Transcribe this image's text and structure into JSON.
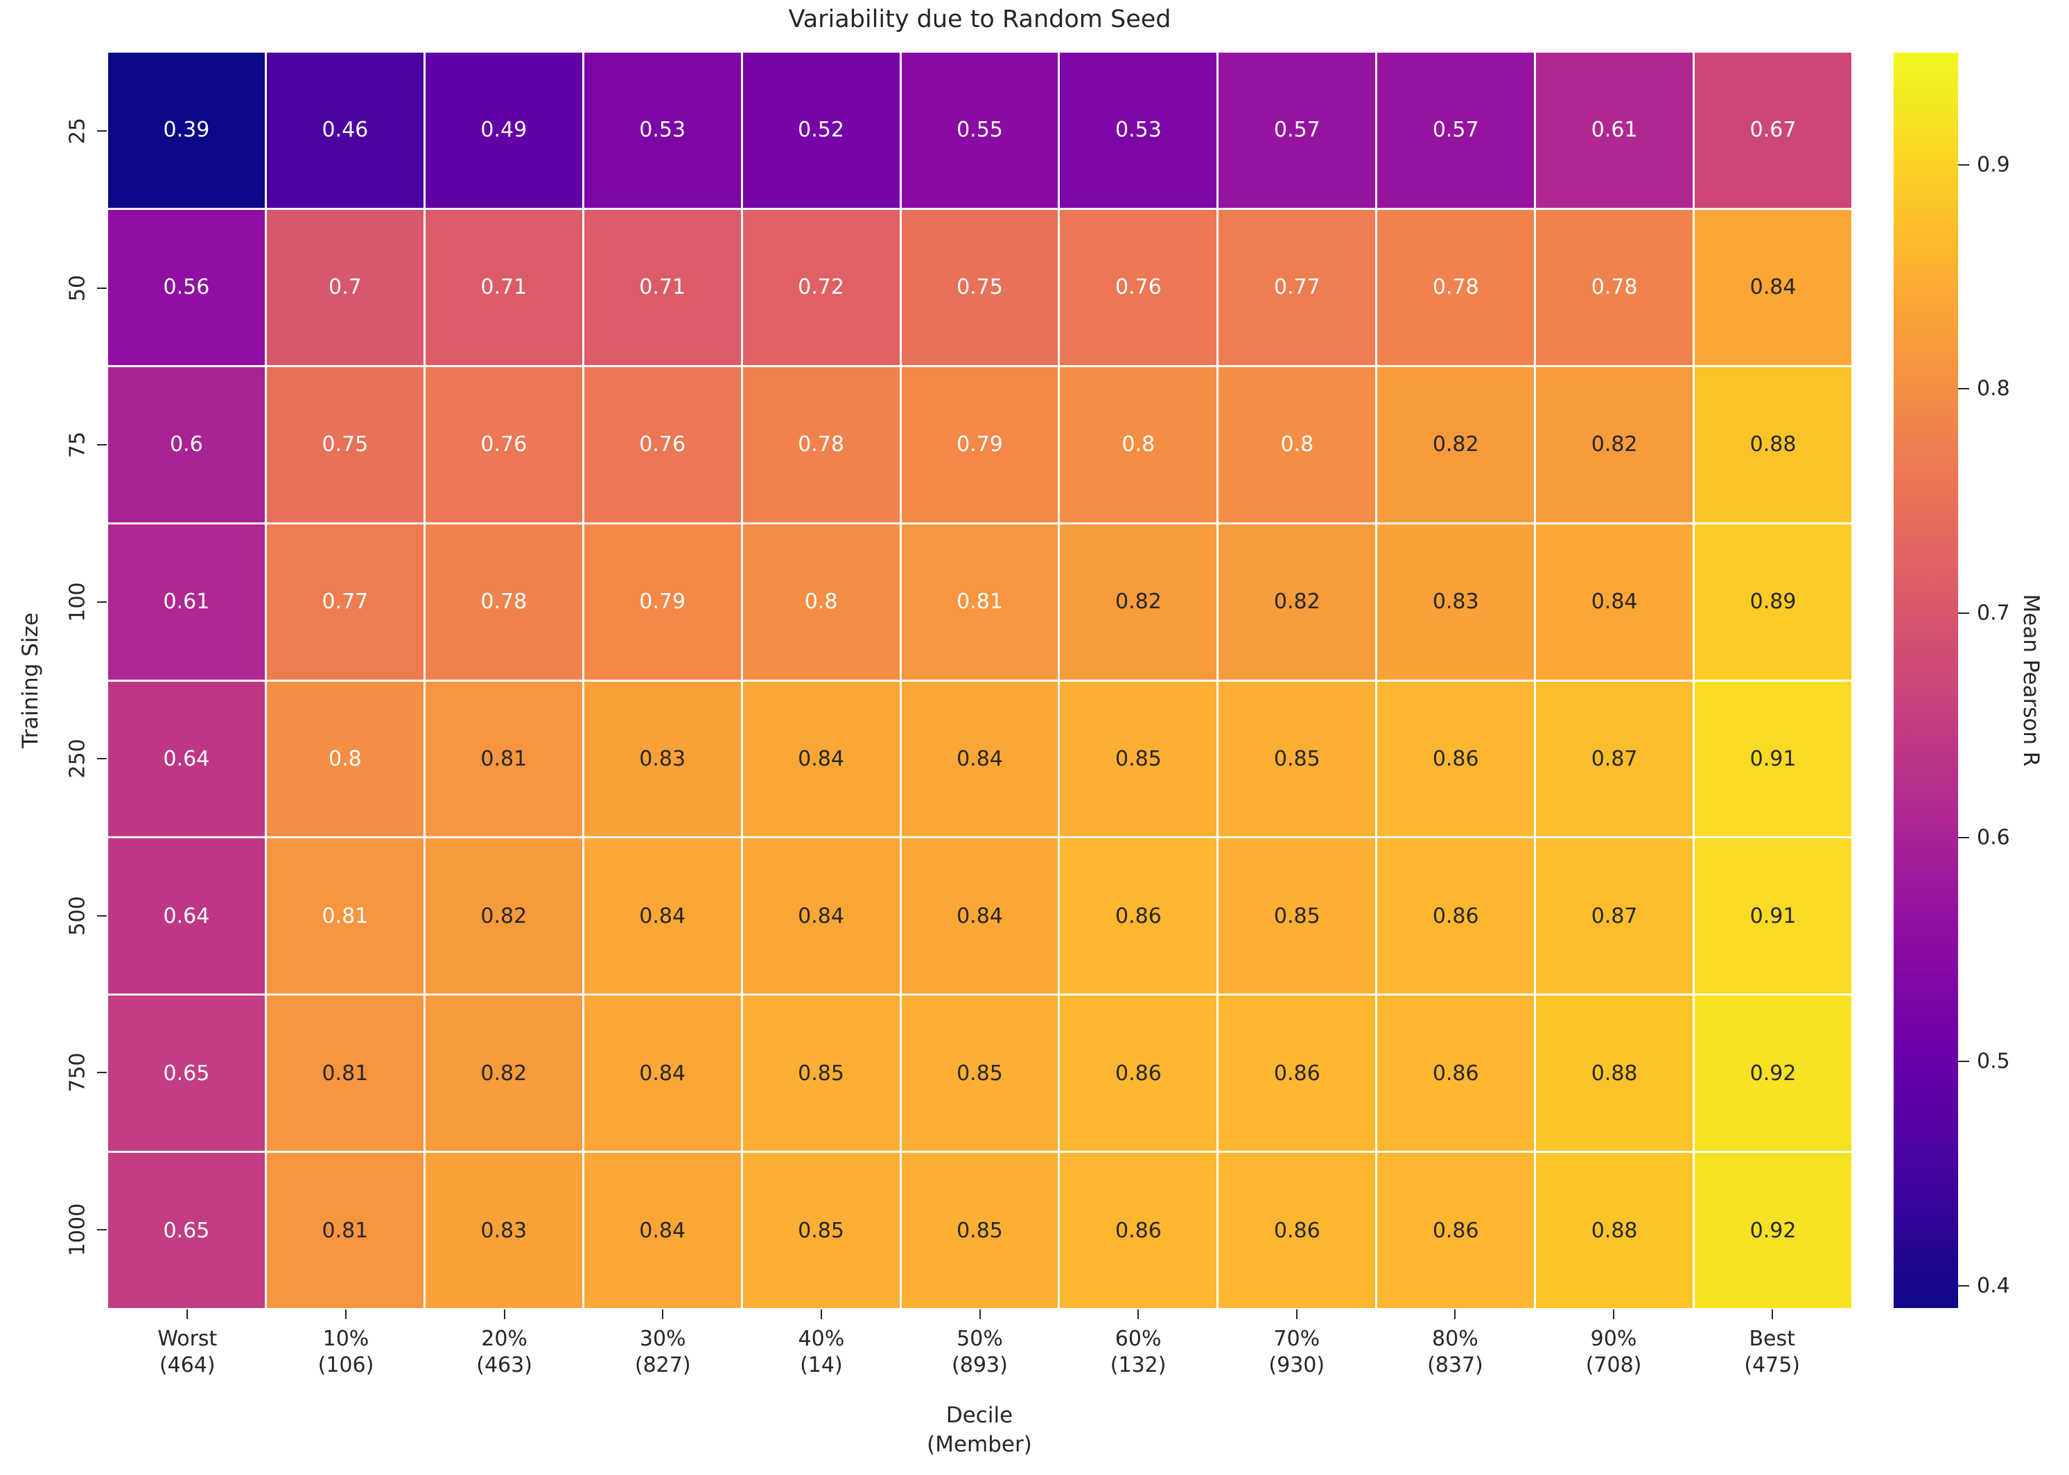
{
  "chart_data": {
    "type": "heatmap",
    "title": "Variability due to Random Seed",
    "xlabel": "Decile\n(Member)",
    "ylabel": "Training Size",
    "colorbar_label": "Mean Pearson R",
    "colormap": "plasma",
    "vmin": 0.39,
    "vmax": 0.95,
    "x_categories": [
      "Worst\n(464)",
      "10%\n(106)",
      "20%\n(463)",
      "30%\n(827)",
      "40%\n(14)",
      "50%\n(893)",
      "60%\n(132)",
      "70%\n(930)",
      "80%\n(837)",
      "90%\n(708)",
      "Best\n(475)"
    ],
    "y_categories": [
      "25",
      "50",
      "75",
      "100",
      "250",
      "500",
      "750",
      "1000"
    ],
    "values": [
      [
        0.39,
        0.46,
        0.49,
        0.53,
        0.52,
        0.55,
        0.53,
        0.57,
        0.57,
        0.61,
        0.67
      ],
      [
        0.56,
        0.7,
        0.71,
        0.71,
        0.72,
        0.75,
        0.76,
        0.77,
        0.78,
        0.78,
        0.84
      ],
      [
        0.6,
        0.75,
        0.76,
        0.76,
        0.78,
        0.79,
        0.8,
        0.8,
        0.82,
        0.82,
        0.88
      ],
      [
        0.61,
        0.77,
        0.78,
        0.79,
        0.8,
        0.81,
        0.82,
        0.82,
        0.83,
        0.84,
        0.89
      ],
      [
        0.64,
        0.8,
        0.81,
        0.83,
        0.84,
        0.84,
        0.85,
        0.85,
        0.86,
        0.87,
        0.91
      ],
      [
        0.64,
        0.81,
        0.82,
        0.84,
        0.84,
        0.84,
        0.86,
        0.85,
        0.86,
        0.87,
        0.91
      ],
      [
        0.65,
        0.81,
        0.82,
        0.84,
        0.85,
        0.85,
        0.86,
        0.86,
        0.86,
        0.88,
        0.92
      ],
      [
        0.65,
        0.81,
        0.83,
        0.84,
        0.85,
        0.85,
        0.86,
        0.86,
        0.86,
        0.88,
        0.92
      ]
    ],
    "annot_dark_text": [
      [
        0,
        0,
        0,
        0,
        0,
        0,
        0,
        0,
        0,
        0,
        0
      ],
      [
        0,
        0,
        0,
        0,
        0,
        0,
        0,
        0,
        0,
        0,
        1
      ],
      [
        0,
        0,
        0,
        0,
        0,
        0,
        0,
        0,
        1,
        1,
        1
      ],
      [
        0,
        0,
        0,
        0,
        0,
        0,
        1,
        1,
        1,
        1,
        1
      ],
      [
        0,
        0,
        1,
        1,
        1,
        1,
        1,
        1,
        1,
        1,
        1
      ],
      [
        0,
        0,
        1,
        1,
        1,
        1,
        1,
        1,
        1,
        1,
        1
      ],
      [
        0,
        1,
        1,
        1,
        1,
        1,
        1,
        1,
        1,
        1,
        1
      ],
      [
        0,
        1,
        1,
        1,
        1,
        1,
        1,
        1,
        1,
        1,
        1
      ]
    ],
    "colorbar_ticks": [
      "0.9",
      "0.8",
      "0.7",
      "0.6",
      "0.5",
      "0.4"
    ],
    "colors": {
      "background": "#ffffff",
      "text": "#262626",
      "annot_light": "#ffffff",
      "annot_dark": "#262626",
      "cmap_min": "#0d0887",
      "cmap_max": "#f0f921"
    },
    "legend_position": "right-colorbar",
    "grid": false
  }
}
